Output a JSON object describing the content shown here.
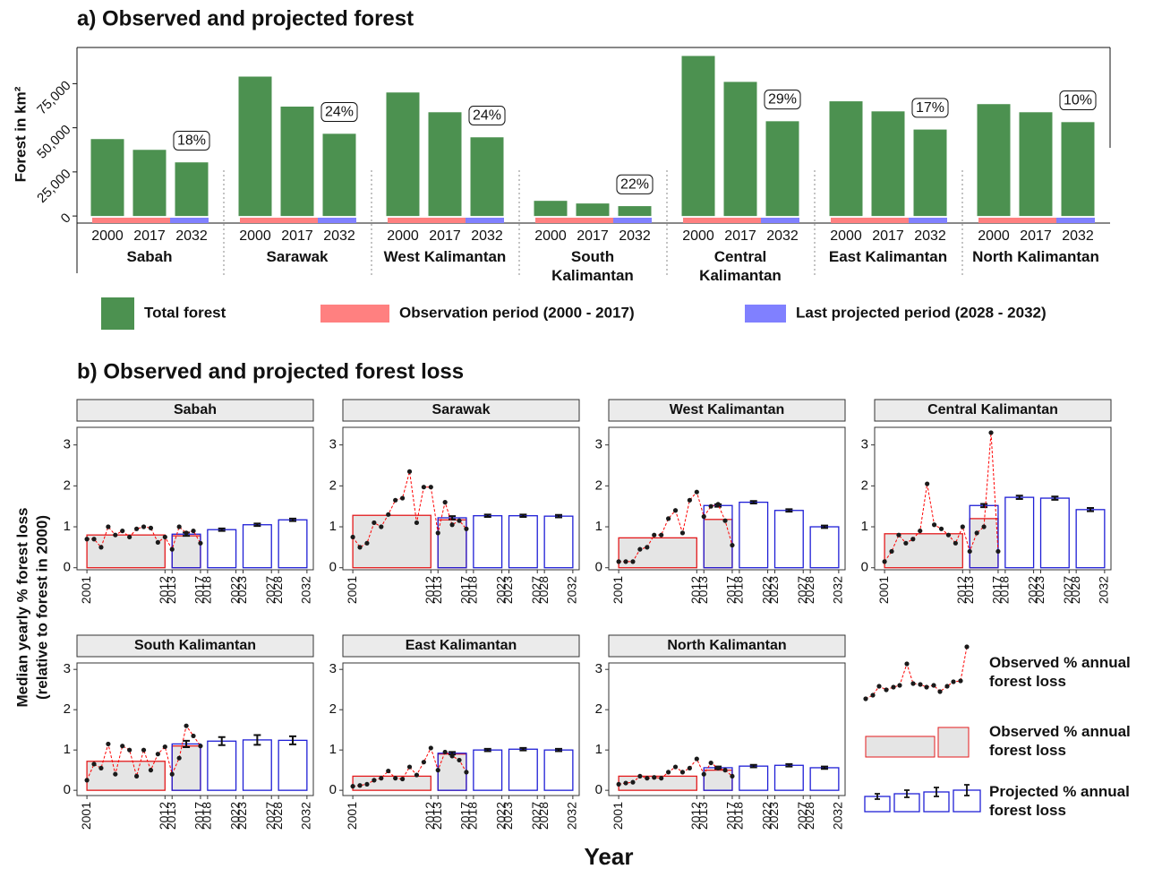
{
  "figure": {
    "panel_a_title": "a) Observed and projected forest",
    "panel_a_ylabel": "Forest in km²",
    "panel_b_title": "b) Observed and projected forest loss",
    "panel_b_ylabel": [
      "Median yearly % forest loss",
      "(relative to forest in 2000)"
    ],
    "panel_b_xlabel": "Year",
    "panel_b_legend": [
      "Observed % annual forest loss",
      "Observed % annual forest loss",
      "Projected % annual forest loss"
    ]
  },
  "chart_data": [
    {
      "type": "bar",
      "categories": [
        "Sabah",
        "Sarawak",
        "West Kalimantan",
        "South Kalimantan",
        "Central Kalimantan",
        "East Kalimantan",
        "North Kalimantan"
      ],
      "groups": [
        "2000",
        "2017",
        "2032"
      ],
      "values": [
        [
          43600,
          37500,
          30400
        ],
        [
          79000,
          62000,
          46600
        ],
        [
          70000,
          58800,
          44600
        ],
        [
          8600,
          7100,
          5600
        ],
        [
          90700,
          76000,
          53700
        ],
        [
          65000,
          59300,
          49000
        ],
        [
          63400,
          58800,
          53200
        ]
      ],
      "annotations": [
        "18%",
        "24%",
        "24%",
        "22%",
        "29%",
        "17%",
        "10%"
      ],
      "legend": [
        {
          "name": "Total forest",
          "color": "#4c9150"
        },
        {
          "name": "Observation period (2000 - 2017)",
          "color": "#ff8080"
        },
        {
          "name": "Last projected period (2028 - 2032)",
          "color": "#8080ff"
        }
      ],
      "ylim": [
        -4000,
        95500
      ],
      "yticks": [
        0,
        {
          "value": 25000,
          "label": "25,000"
        },
        {
          "value": 50000,
          "label": "50,000"
        },
        {
          "value": 75000,
          "label": "75,000"
        }
      ]
    },
    {
      "type": "combo",
      "title": "Sabah",
      "x": [
        2001,
        2002,
        2003,
        2004,
        2005,
        2006,
        2007,
        2008,
        2009,
        2010,
        2011,
        2012,
        2013,
        2014,
        2015,
        2016,
        2017
      ],
      "values": [
        0.7,
        0.7,
        0.5,
        1.0,
        0.8,
        0.9,
        0.75,
        0.95,
        1.0,
        0.97,
        0.62,
        0.75,
        0.45,
        1.0,
        0.85,
        0.9,
        0.6
      ],
      "observed": [
        {
          "start": 2001,
          "end": 2012,
          "value": 0.8
        },
        {
          "start": 2013,
          "end": 2017,
          "value": 0.78
        }
      ],
      "projected": [
        {
          "start": 2013,
          "end": 2017,
          "value": 0.82,
          "error": 0.04
        },
        {
          "start": 2018,
          "end": 2022,
          "value": 0.93,
          "error": 0.03
        },
        {
          "start": 2023,
          "end": 2027,
          "value": 1.05,
          "error": 0.03
        },
        {
          "start": 2028,
          "end": 2032,
          "value": 1.17,
          "error": 0.03
        }
      ],
      "point_color": "#1a1a1a",
      "line_color": "#ff0000",
      "observed_color": "#e31a1c",
      "observed_fill": "#e5e5e5",
      "projected_color": "#1f1fd6",
      "xlim": [
        1999.6,
        2032.9
      ],
      "ylim": [
        -0.05,
        3.43
      ],
      "xticks": [
        2001,
        2012,
        2013,
        2017,
        2018,
        2022,
        2023,
        2027,
        2028,
        2032
      ],
      "yticks": [
        0,
        1,
        2,
        3
      ]
    },
    {
      "type": "combo",
      "title": "Sarawak",
      "x": [
        2001,
        2002,
        2003,
        2004,
        2005,
        2006,
        2007,
        2008,
        2009,
        2010,
        2011,
        2012,
        2013,
        2014,
        2015,
        2016,
        2017
      ],
      "values": [
        0.75,
        0.5,
        0.6,
        1.1,
        1.0,
        1.3,
        1.65,
        1.7,
        2.35,
        1.1,
        1.97,
        1.97,
        0.85,
        1.6,
        1.05,
        1.15,
        0.95
      ],
      "observed": [
        {
          "start": 2001,
          "end": 2012,
          "value": 1.28
        },
        {
          "start": 2013,
          "end": 2017,
          "value": 1.17
        }
      ],
      "projected": [
        {
          "start": 2013,
          "end": 2017,
          "value": 1.22,
          "error": 0.04
        },
        {
          "start": 2018,
          "end": 2022,
          "value": 1.27,
          "error": 0.03
        },
        {
          "start": 2023,
          "end": 2027,
          "value": 1.27,
          "error": 0.03
        },
        {
          "start": 2028,
          "end": 2032,
          "value": 1.26,
          "error": 0.03
        }
      ],
      "point_color": "#1a1a1a",
      "line_color": "#ff0000",
      "observed_color": "#e31a1c",
      "observed_fill": "#e5e5e5",
      "projected_color": "#1f1fd6",
      "xlim": [
        1999.6,
        2032.9
      ],
      "ylim": [
        -0.05,
        3.43
      ],
      "xticks": [
        2001,
        2012,
        2013,
        2017,
        2018,
        2022,
        2023,
        2027,
        2028,
        2032
      ],
      "yticks": [
        0,
        1,
        2,
        3
      ]
    },
    {
      "type": "combo",
      "title": "West Kalimantan",
      "x": [
        2001,
        2002,
        2003,
        2004,
        2005,
        2006,
        2007,
        2008,
        2009,
        2010,
        2011,
        2012,
        2013,
        2014,
        2015,
        2016,
        2017
      ],
      "values": [
        0.15,
        0.15,
        0.15,
        0.45,
        0.5,
        0.8,
        0.8,
        1.2,
        1.4,
        0.85,
        1.65,
        1.85,
        1.25,
        1.5,
        1.55,
        1.15,
        0.55
      ],
      "observed": [
        {
          "start": 2001,
          "end": 2012,
          "value": 0.73
        },
        {
          "start": 2013,
          "end": 2017,
          "value": 1.18
        }
      ],
      "projected": [
        {
          "start": 2013,
          "end": 2017,
          "value": 1.52,
          "error": 0.03
        },
        {
          "start": 2018,
          "end": 2022,
          "value": 1.6,
          "error": 0.03
        },
        {
          "start": 2023,
          "end": 2027,
          "value": 1.4,
          "error": 0.03
        },
        {
          "start": 2028,
          "end": 2032,
          "value": 1.0,
          "error": 0.03
        }
      ],
      "point_color": "#1a1a1a",
      "line_color": "#ff0000",
      "observed_color": "#e31a1c",
      "observed_fill": "#e5e5e5",
      "projected_color": "#1f1fd6",
      "xlim": [
        1999.6,
        2032.9
      ],
      "ylim": [
        -0.05,
        3.43
      ],
      "xticks": [
        2001,
        2012,
        2013,
        2017,
        2018,
        2022,
        2023,
        2027,
        2028,
        2032
      ],
      "yticks": [
        0,
        1,
        2,
        3
      ]
    },
    {
      "type": "combo",
      "title": "Central Kalimantan",
      "x": [
        2001,
        2002,
        2003,
        2004,
        2005,
        2006,
        2007,
        2008,
        2009,
        2010,
        2011,
        2012,
        2013,
        2014,
        2015,
        2016,
        2017
      ],
      "values": [
        0.15,
        0.4,
        0.8,
        0.6,
        0.7,
        0.9,
        2.05,
        1.05,
        0.95,
        0.8,
        0.6,
        1.0,
        0.4,
        0.85,
        1.0,
        3.3,
        0.4
      ],
      "observed": [
        {
          "start": 2001,
          "end": 2012,
          "value": 0.83
        },
        {
          "start": 2013,
          "end": 2017,
          "value": 1.2
        }
      ],
      "projected": [
        {
          "start": 2013,
          "end": 2017,
          "value": 1.52,
          "error": 0.04
        },
        {
          "start": 2018,
          "end": 2022,
          "value": 1.72,
          "error": 0.04
        },
        {
          "start": 2023,
          "end": 2027,
          "value": 1.7,
          "error": 0.04
        },
        {
          "start": 2028,
          "end": 2032,
          "value": 1.42,
          "error": 0.04
        }
      ],
      "point_color": "#1a1a1a",
      "line_color": "#ff0000",
      "observed_color": "#e31a1c",
      "observed_fill": "#e5e5e5",
      "projected_color": "#1f1fd6",
      "xlim": [
        1999.6,
        2032.9
      ],
      "ylim": [
        -0.05,
        3.43
      ],
      "xticks": [
        2001,
        2012,
        2013,
        2017,
        2018,
        2022,
        2023,
        2027,
        2028,
        2032
      ],
      "yticks": [
        0,
        1,
        2,
        3
      ]
    },
    {
      "type": "combo",
      "title": "South Kalimantan",
      "x": [
        2001,
        2002,
        2003,
        2004,
        2005,
        2006,
        2007,
        2008,
        2009,
        2010,
        2011,
        2012,
        2013,
        2014,
        2015,
        2016,
        2017
      ],
      "values": [
        0.25,
        0.65,
        0.55,
        1.15,
        0.4,
        1.1,
        1.0,
        0.35,
        1.0,
        0.5,
        0.9,
        1.08,
        0.4,
        0.8,
        1.6,
        1.35,
        1.1
      ],
      "observed": [
        {
          "start": 2001,
          "end": 2012,
          "value": 0.72
        },
        {
          "start": 2013,
          "end": 2017,
          "value": 1.1
        }
      ],
      "projected": [
        {
          "start": 2013,
          "end": 2017,
          "value": 1.15,
          "error": 0.08
        },
        {
          "start": 2018,
          "end": 2022,
          "value": 1.22,
          "error": 0.1
        },
        {
          "start": 2023,
          "end": 2027,
          "value": 1.25,
          "error": 0.12
        },
        {
          "start": 2028,
          "end": 2032,
          "value": 1.24,
          "error": 0.1
        }
      ],
      "point_color": "#1a1a1a",
      "line_color": "#ff0000",
      "observed_color": "#e31a1c",
      "observed_fill": "#e5e5e5",
      "projected_color": "#1f1fd6",
      "xlim": [
        1999.6,
        2032.9
      ],
      "ylim": [
        -0.13,
        3.16
      ],
      "xticks": [
        2001,
        2012,
        2013,
        2017,
        2018,
        2022,
        2023,
        2027,
        2028,
        2032
      ],
      "yticks": [
        0,
        1,
        2,
        3
      ]
    },
    {
      "type": "combo",
      "title": "East Kalimantan",
      "x": [
        2001,
        2002,
        2003,
        2004,
        2005,
        2006,
        2007,
        2008,
        2009,
        2010,
        2011,
        2012,
        2013,
        2014,
        2015,
        2016,
        2017
      ],
      "values": [
        0.1,
        0.12,
        0.15,
        0.25,
        0.3,
        0.48,
        0.3,
        0.28,
        0.58,
        0.38,
        0.7,
        1.05,
        0.5,
        0.95,
        0.85,
        0.75,
        0.45
      ],
      "observed": [
        {
          "start": 2001,
          "end": 2012,
          "value": 0.35
        },
        {
          "start": 2013,
          "end": 2017,
          "value": 0.9
        }
      ],
      "projected": [
        {
          "start": 2013,
          "end": 2017,
          "value": 0.92,
          "error": 0.03
        },
        {
          "start": 2018,
          "end": 2022,
          "value": 1.0,
          "error": 0.03
        },
        {
          "start": 2023,
          "end": 2027,
          "value": 1.02,
          "error": 0.03
        },
        {
          "start": 2028,
          "end": 2032,
          "value": 1.0,
          "error": 0.03
        }
      ],
      "point_color": "#1a1a1a",
      "line_color": "#ff0000",
      "observed_color": "#e31a1c",
      "observed_fill": "#e5e5e5",
      "projected_color": "#1f1fd6",
      "xlim": [
        1999.6,
        2032.9
      ],
      "ylim": [
        -0.13,
        3.16
      ],
      "xticks": [
        2001,
        2012,
        2013,
        2017,
        2018,
        2022,
        2023,
        2027,
        2028,
        2032
      ],
      "yticks": [
        0,
        1,
        2,
        3
      ]
    },
    {
      "type": "combo",
      "title": "North Kalimantan",
      "x": [
        2001,
        2002,
        2003,
        2004,
        2005,
        2006,
        2007,
        2008,
        2009,
        2010,
        2011,
        2012,
        2013,
        2014,
        2015,
        2016,
        2017
      ],
      "values": [
        0.15,
        0.18,
        0.2,
        0.35,
        0.3,
        0.32,
        0.3,
        0.45,
        0.58,
        0.45,
        0.55,
        0.78,
        0.4,
        0.68,
        0.55,
        0.5,
        0.35
      ],
      "observed": [
        {
          "start": 2001,
          "end": 2012,
          "value": 0.35
        },
        {
          "start": 2013,
          "end": 2017,
          "value": 0.5
        }
      ],
      "projected": [
        {
          "start": 2013,
          "end": 2017,
          "value": 0.56,
          "error": 0.03
        },
        {
          "start": 2018,
          "end": 2022,
          "value": 0.6,
          "error": 0.03
        },
        {
          "start": 2023,
          "end": 2027,
          "value": 0.62,
          "error": 0.03
        },
        {
          "start": 2028,
          "end": 2032,
          "value": 0.56,
          "error": 0.03
        }
      ],
      "point_color": "#1a1a1a",
      "line_color": "#ff0000",
      "observed_color": "#e31a1c",
      "observed_fill": "#e5e5e5",
      "projected_color": "#1f1fd6",
      "xlim": [
        1999.6,
        2032.9
      ],
      "ylim": [
        -0.13,
        3.16
      ],
      "xticks": [
        2001,
        2012,
        2013,
        2017,
        2018,
        2022,
        2023,
        2027,
        2028,
        2032
      ],
      "yticks": [
        0,
        1,
        2,
        3
      ]
    }
  ]
}
